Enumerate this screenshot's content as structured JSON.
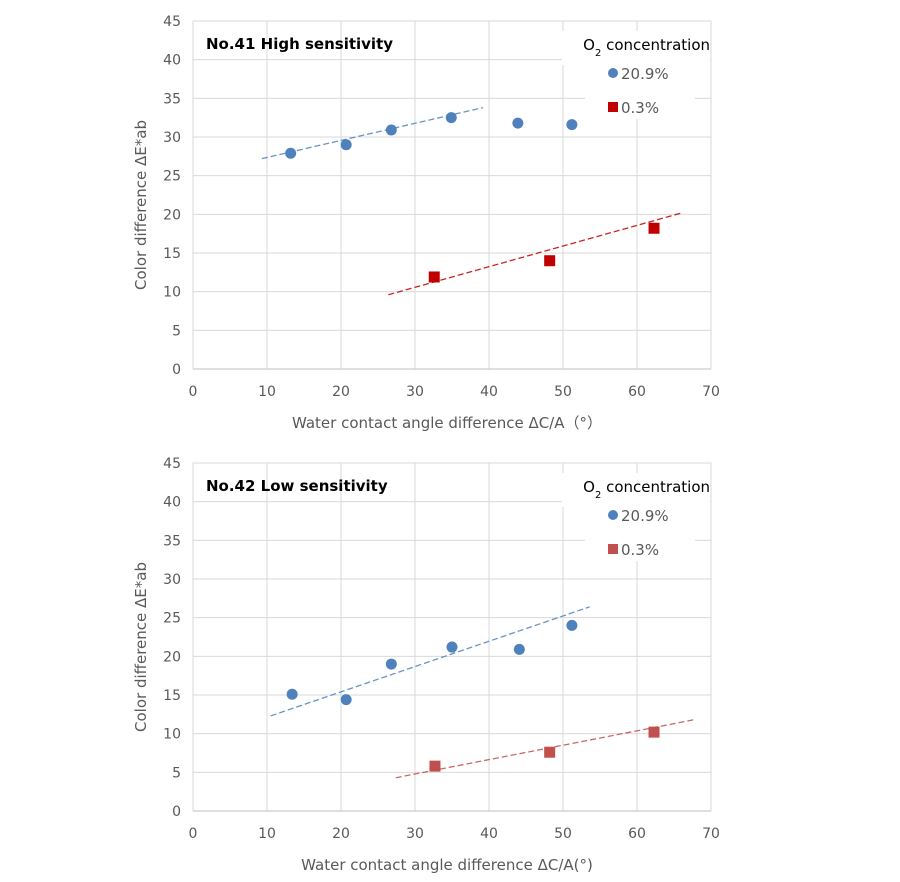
{
  "chart_data": [
    {
      "type": "scatter",
      "title": "No.41 High sensitivity",
      "xlabel": "Water contact angle difference ΔC/A（°）",
      "ylabel": "Color difference ΔE*ab",
      "xlim": [
        0,
        70
      ],
      "ylim": [
        0,
        45
      ],
      "xticks": [
        0,
        10,
        20,
        30,
        40,
        50,
        60,
        70
      ],
      "yticks": [
        0,
        5,
        10,
        15,
        20,
        25,
        30,
        35,
        40,
        45
      ],
      "grid": true,
      "legend": {
        "title": "O",
        "title_sub": "2",
        "title_rest": " concentration",
        "placement": "top-right"
      },
      "series": [
        {
          "name": "20.9%",
          "marker": "circle",
          "color": "#4f81bd",
          "x": [
            13.2,
            20.7,
            26.8,
            34.9,
            43.9,
            51.2
          ],
          "y": [
            27.9,
            29.0,
            30.9,
            32.5,
            31.8,
            31.6
          ],
          "trendline": {
            "x": [
              9.3,
              39.2
            ],
            "y": [
              27.2,
              33.8
            ]
          }
        },
        {
          "name": "0.3%",
          "marker": "square",
          "color": "#c00000",
          "x": [
            32.6,
            48.2,
            62.3
          ],
          "y": [
            11.9,
            14.0,
            18.2
          ],
          "trendline": {
            "x": [
              26.4,
              66.1
            ],
            "y": [
              9.6,
              20.2
            ]
          }
        }
      ]
    },
    {
      "type": "scatter",
      "title": "No.42 Low sensitivity",
      "xlabel": "Water contact angle difference ΔC/A(°)",
      "ylabel": "Color difference ΔE*ab",
      "xlim": [
        0,
        70
      ],
      "ylim": [
        0,
        45
      ],
      "xticks": [
        0,
        10,
        20,
        30,
        40,
        50,
        60,
        70
      ],
      "yticks": [
        0,
        5,
        10,
        15,
        20,
        25,
        30,
        35,
        40,
        45
      ],
      "grid": true,
      "legend": {
        "title": "O",
        "title_sub": "2",
        "title_rest": " concentration",
        "placement": "top-right"
      },
      "series": [
        {
          "name": "20.9%",
          "marker": "circle",
          "color": "#4f81bd",
          "x": [
            13.4,
            20.7,
            26.8,
            35.0,
            44.1,
            51.2
          ],
          "y": [
            15.1,
            14.4,
            19.0,
            21.2,
            20.9,
            24.0
          ],
          "trendline": {
            "x": [
              10.5,
              53.6
            ],
            "y": [
              12.3,
              26.4
            ]
          }
        },
        {
          "name": "0.3%",
          "marker": "square",
          "color": "#c0504d",
          "x": [
            32.7,
            48.2,
            62.3
          ],
          "y": [
            5.8,
            7.6,
            10.2
          ],
          "trendline": {
            "x": [
              27.4,
              67.7
            ],
            "y": [
              4.3,
              11.8
            ]
          }
        }
      ]
    }
  ]
}
